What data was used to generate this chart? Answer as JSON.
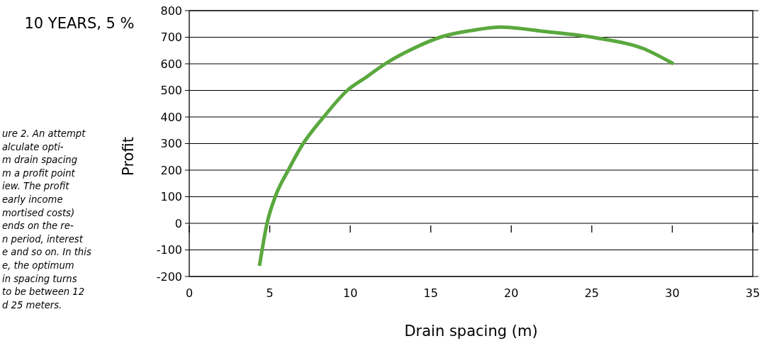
{
  "chart_data": {
    "type": "line",
    "title": "10 YEARS, 5 %",
    "xlabel": "Drain spacing (m)",
    "ylabel": "Profit",
    "x": [
      4.36,
      4.83,
      5.34,
      6.15,
      6.96,
      8.35,
      9.82,
      11,
      12.17,
      14,
      15.69,
      17.5,
      19.36,
      22,
      25.23,
      28.17,
      30.07
    ],
    "series": [
      {
        "color": "#5aa83e",
        "values": [
          -160,
          0,
          100,
          200,
          289,
          400,
          500,
          550,
          600,
          660,
          702,
          725,
          738,
          722,
          698,
          658,
          600
        ]
      }
    ],
    "xlim": [
      0,
      35
    ],
    "xticks": [
      0,
      5,
      10,
      15,
      20,
      25,
      30,
      35
    ],
    "ylim": [
      -200,
      800
    ],
    "yticks": [
      -200,
      -100,
      0,
      100,
      200,
      300,
      400,
      500,
      600,
      700,
      800
    ],
    "grid": "y",
    "marker": "none",
    "line_style": "solid",
    "annotations": [
      "ure 2.  An attempt\nalculate opti-\nm drain spacing\nm a profit point\niew. The profit\nearly income\nmortised costs)\nends on the re-\nn period, interest\ne and so on. In this\ne, the optimum\nin spacing turns\nto be between 12\nd 25 meters."
    ]
  }
}
